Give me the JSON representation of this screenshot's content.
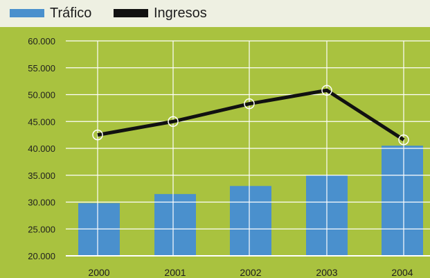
{
  "legend": {
    "items": [
      {
        "label": "Tráfico",
        "color": "#4a90cd"
      },
      {
        "label": "Ingresos",
        "color": "#111111"
      }
    ]
  },
  "colors": {
    "background": "#a9c23f",
    "legend_background": "#eef0e2",
    "gridline": "#ffffff",
    "bar": "#4a90cd",
    "line": "#111111",
    "marker": "#ffffff"
  },
  "chart_data": {
    "type": "bar",
    "categories": [
      "2000",
      "2001",
      "2002",
      "2003",
      "2004"
    ],
    "series": [
      {
        "name": "Tráfico",
        "type": "bar",
        "values": [
          29800,
          31500,
          33000,
          35000,
          40500
        ]
      },
      {
        "name": "Ingresos",
        "type": "line",
        "values": [
          42500,
          45000,
          48300,
          50800,
          41600
        ]
      }
    ],
    "ylim": [
      20000,
      60000
    ],
    "yticks": [
      "60.000",
      "55.000",
      "50.000",
      "45.000",
      "40.000",
      "35.000",
      "30.000",
      "25.000",
      "20.000"
    ],
    "ytick_values": [
      60000,
      55000,
      50000,
      45000,
      40000,
      35000,
      30000,
      25000,
      20000
    ],
    "grid": true,
    "legend_position": "top"
  }
}
